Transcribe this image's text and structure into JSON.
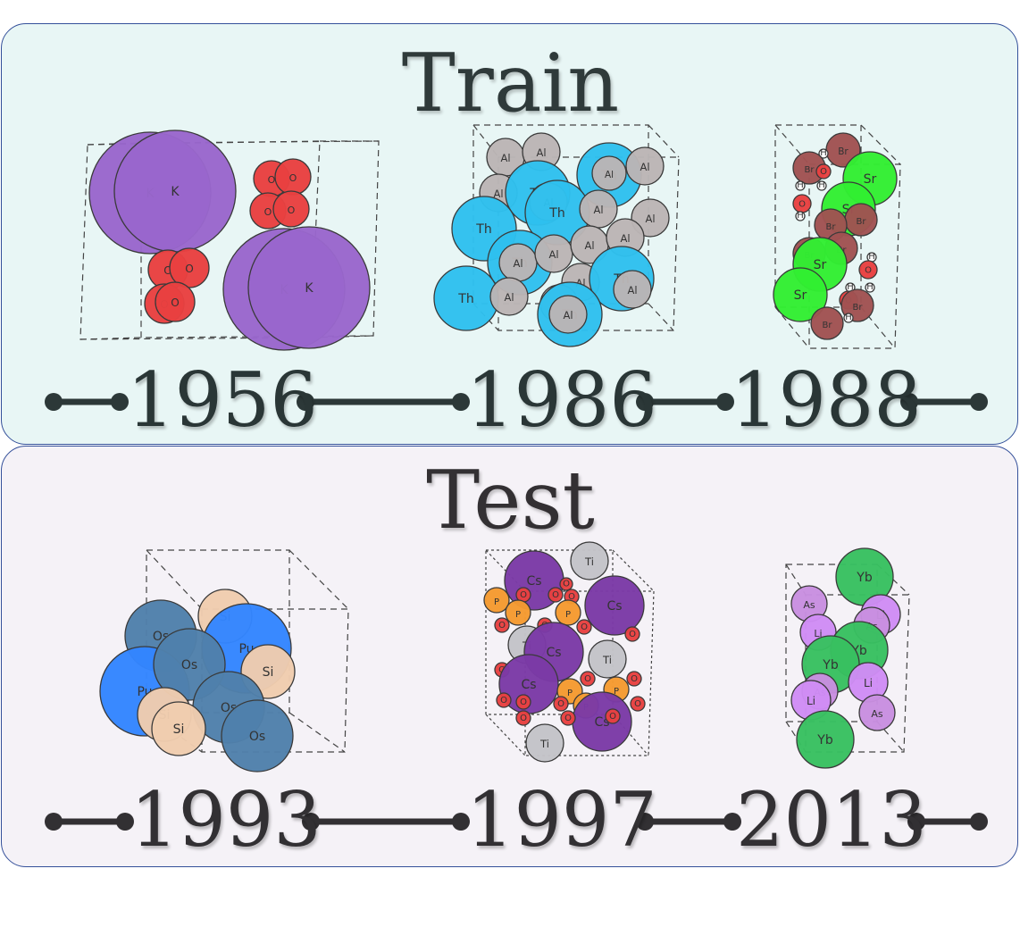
{
  "sections": [
    {
      "id": "train",
      "title": "Train",
      "years": [
        "1956",
        "1986",
        "1988"
      ],
      "structures": [
        {
          "year": "1956",
          "elements": [
            "K",
            "O"
          ]
        },
        {
          "year": "1986",
          "elements": [
            "Al",
            "Th"
          ]
        },
        {
          "year": "1988",
          "elements": [
            "Br",
            "Sr",
            "O",
            "H"
          ]
        }
      ]
    },
    {
      "id": "test",
      "title": "Test",
      "years": [
        "1993",
        "1997",
        "2013"
      ],
      "structures": [
        {
          "year": "1993",
          "elements": [
            "Os",
            "Pu",
            "Si"
          ]
        },
        {
          "year": "1997",
          "elements": [
            "Cs",
            "Ti",
            "P",
            "O"
          ]
        },
        {
          "year": "2013",
          "elements": [
            "Yb",
            "As",
            "Li"
          ]
        }
      ]
    }
  ],
  "element_colors": {
    "K": "#9966cc",
    "O": "#e84040",
    "Al": "#bbb5b5",
    "Th": "#2ec0ee",
    "Br": "#a05252",
    "Sr": "#32ee32",
    "H": "#ffffff",
    "Os": "#4f80ab",
    "Pu": "#3385ff",
    "Si": "#f0ccae",
    "Cs": "#7b3aa6",
    "Ti": "#c3c3c8",
    "P": "#f59a30",
    "Yb": "#38c060",
    "As": "#c88ee0",
    "Li": "#d08cf5"
  }
}
